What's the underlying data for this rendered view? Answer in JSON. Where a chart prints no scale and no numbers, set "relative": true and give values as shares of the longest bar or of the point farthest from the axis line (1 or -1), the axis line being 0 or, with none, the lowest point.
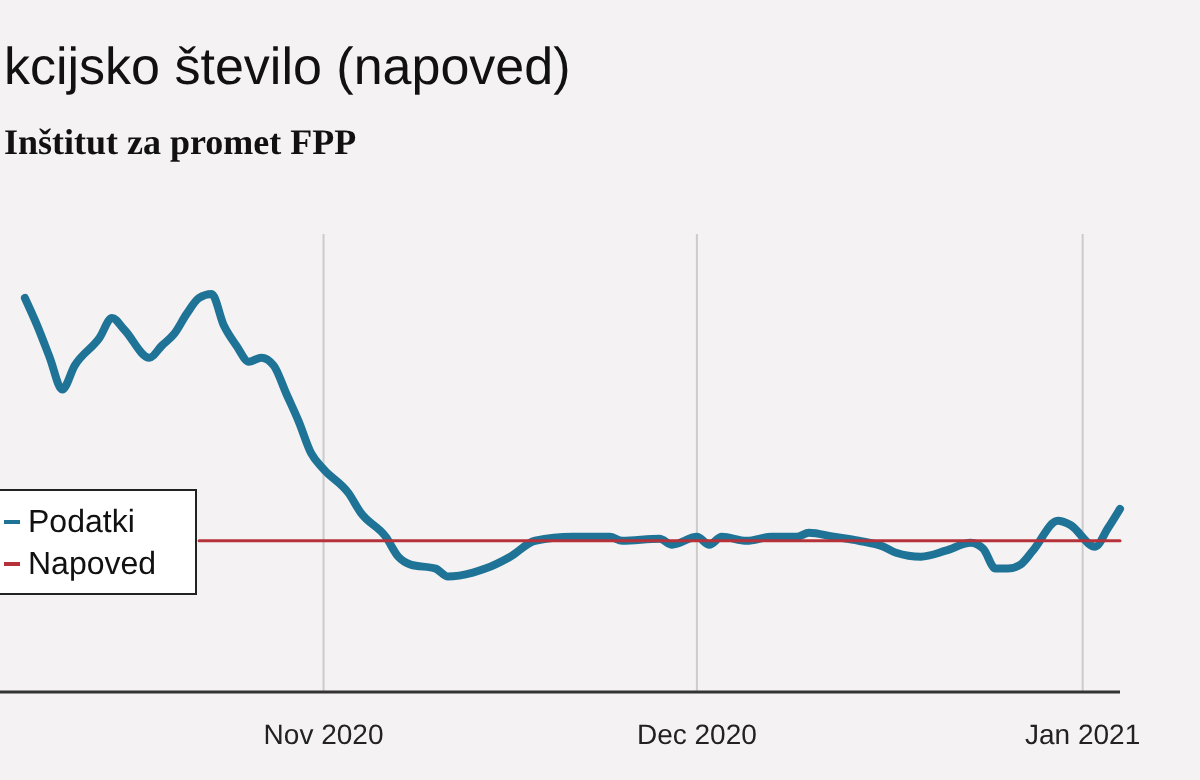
{
  "chart_data": {
    "type": "line",
    "title": "kcijsko število (napoved)",
    "subtitle": "Inštitut za promet FPP",
    "relative": true,
    "grid": "x",
    "legend": "left",
    "xlim": [
      "2020-10-06",
      "2021-01-04"
    ],
    "xticks": [
      {
        "value": "2020-11-01",
        "label": "Nov 2020"
      },
      {
        "value": "2020-12-01",
        "label": "Dec 2020"
      },
      {
        "value": "2021-01-01",
        "label": "Jan 2021"
      }
    ],
    "series": [
      {
        "name": "Podatki",
        "color": "#1f7396",
        "x": [
          "2020-10-08",
          "2020-10-09",
          "2020-10-10",
          "2020-10-11",
          "2020-10-12",
          "2020-10-14",
          "2020-10-15",
          "2020-10-16",
          "2020-10-18",
          "2020-10-19",
          "2020-10-20",
          "2020-10-21",
          "2020-10-22",
          "2020-10-23",
          "2020-10-24",
          "2020-10-25",
          "2020-10-26",
          "2020-10-27",
          "2020-10-28",
          "2020-10-29",
          "2020-10-30",
          "2020-10-31",
          "2020-11-01",
          "2020-11-03",
          "2020-11-04",
          "2020-11-06",
          "2020-11-07",
          "2020-11-08",
          "2020-11-10",
          "2020-11-11",
          "2020-11-13",
          "2020-11-14",
          "2020-11-16",
          "2020-11-18",
          "2020-11-21",
          "2020-11-24",
          "2020-11-25",
          "2020-11-28",
          "2020-11-29",
          "2020-12-01",
          "2020-12-02",
          "2020-12-03",
          "2020-12-05",
          "2020-12-07",
          "2020-12-09",
          "2020-12-10",
          "2020-12-12",
          "2020-12-14",
          "2020-12-16",
          "2020-12-17",
          "2020-12-19",
          "2020-12-21",
          "2020-12-23",
          "2020-12-24",
          "2020-12-25",
          "2020-12-26",
          "2020-12-27",
          "2020-12-28",
          "2020-12-30",
          "2020-12-31",
          "2021-01-02",
          "2021-01-03",
          "2021-01-04"
        ],
        "values": [
          0.99,
          0.92,
          0.84,
          0.76,
          0.82,
          0.89,
          0.94,
          0.91,
          0.84,
          0.87,
          0.9,
          0.95,
          0.99,
          1.0,
          0.92,
          0.87,
          0.83,
          0.84,
          0.82,
          0.75,
          0.68,
          0.6,
          0.56,
          0.5,
          0.45,
          0.39,
          0.34,
          0.32,
          0.31,
          0.29,
          0.3,
          0.31,
          0.34,
          0.38,
          0.39,
          0.39,
          0.38,
          0.385,
          0.37,
          0.39,
          0.37,
          0.39,
          0.38,
          0.39,
          0.39,
          0.4,
          0.39,
          0.38,
          0.365,
          0.35,
          0.34,
          0.355,
          0.375,
          0.36,
          0.31,
          0.31,
          0.32,
          0.355,
          0.43,
          0.42,
          0.365,
          0.41,
          0.46
        ]
      },
      {
        "name": "Napoved",
        "color": "#b5323a",
        "x": [
          "2020-10-22",
          "2021-01-04"
        ],
        "values": [
          0.38,
          0.38
        ]
      }
    ]
  }
}
